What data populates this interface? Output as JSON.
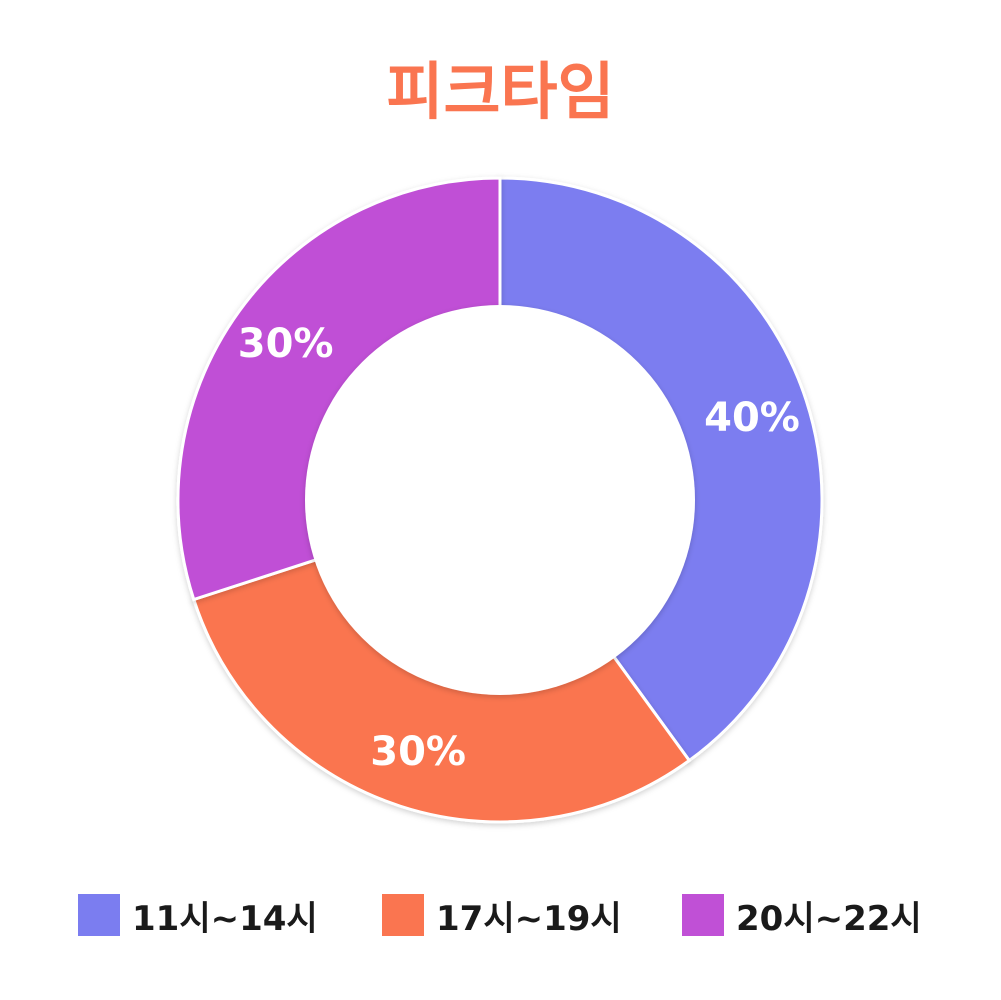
{
  "chart_data": {
    "type": "pie",
    "title": "피크타임",
    "title_color": "#FA7550",
    "donut": true,
    "slices": [
      {
        "name": "11시~14시",
        "value": 40,
        "label": "40%",
        "color": "#7B7DF0"
      },
      {
        "name": "17시~19시",
        "value": 30,
        "label": "30%",
        "color": "#FA7550"
      },
      {
        "name": "20시~22시",
        "value": 30,
        "label": "30%",
        "color": "#C050D6"
      }
    ],
    "legend_position": "bottom"
  }
}
